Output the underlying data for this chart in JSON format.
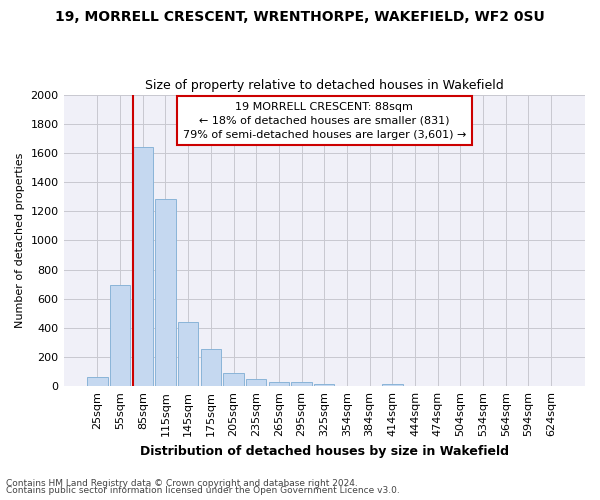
{
  "title": "19, MORRELL CRESCENT, WRENTHORPE, WAKEFIELD, WF2 0SU",
  "subtitle": "Size of property relative to detached houses in Wakefield",
  "xlabel": "Distribution of detached houses by size in Wakefield",
  "ylabel": "Number of detached properties",
  "categories": [
    "25sqm",
    "55sqm",
    "85sqm",
    "115sqm",
    "145sqm",
    "175sqm",
    "205sqm",
    "235sqm",
    "265sqm",
    "295sqm",
    "325sqm",
    "354sqm",
    "384sqm",
    "414sqm",
    "444sqm",
    "474sqm",
    "504sqm",
    "534sqm",
    "564sqm",
    "594sqm",
    "624sqm"
  ],
  "values": [
    65,
    695,
    1640,
    1285,
    440,
    255,
    88,
    50,
    30,
    27,
    15,
    0,
    0,
    18,
    0,
    0,
    0,
    0,
    0,
    0,
    0
  ],
  "bar_color": "#c5d8f0",
  "bar_edge_color": "#8ab4d8",
  "grid_color": "#c8c8d0",
  "annotation_box_color": "#cc0000",
  "annotation_line1": "19 MORRELL CRESCENT: 88sqm",
  "annotation_line2": "← 18% of detached houses are smaller (831)",
  "annotation_line3": "79% of semi-detached houses are larger (3,601) →",
  "property_bar_index": 2,
  "ylim": [
    0,
    2000
  ],
  "yticks": [
    0,
    200,
    400,
    600,
    800,
    1000,
    1200,
    1400,
    1600,
    1800,
    2000
  ],
  "footer_line1": "Contains HM Land Registry data © Crown copyright and database right 2024.",
  "footer_line2": "Contains public sector information licensed under the Open Government Licence v3.0.",
  "bg_color": "#ffffff",
  "plot_bg_color": "#f0f0f8"
}
